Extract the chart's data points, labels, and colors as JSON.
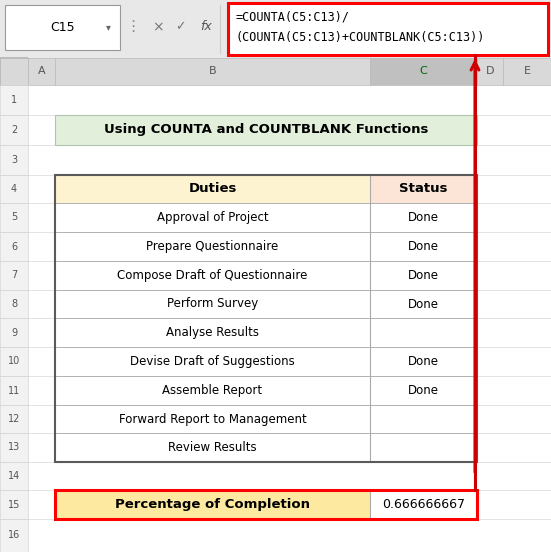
{
  "title": "Using COUNTA and COUNTBLANK Functions",
  "title_bg": "#e2efda",
  "title_border": "#9bc2a0",
  "duties_header": "Duties",
  "status_header": "Status",
  "header_duties_bg": "#fef3d0",
  "header_status_bg": "#fce4d6",
  "duties": [
    "Approval of Project",
    "Prepare Questionnaire",
    "Compose Draft of Questionnaire",
    "Perform Survey",
    "Analyse Results",
    "Devise Draft of Suggestions",
    "Assemble Report",
    "Forward Report to Management",
    "Review Results"
  ],
  "status": [
    "Done",
    "Done",
    "Done",
    "Done",
    "",
    "Done",
    "Done",
    "",
    ""
  ],
  "footer_label": "Percentage of Completion",
  "footer_value": "0.666666667",
  "footer_bg": "#fde9a0",
  "footer_value_bg": "#ffffff",
  "formula_line1": "=COUNTA(C5:C13)/",
  "formula_line2": "(COUNTA(C5:C13)+COUNTBLANK(C5:C13))",
  "formula_border": "#ff0000",
  "cell_ref": "C15",
  "duties_text_color": "#000000",
  "status_text_color": "#000000",
  "bg_color": "#ffffff",
  "toolbar_bg": "#e8e8e8",
  "formula_bar_bg": "#f2f2f2",
  "col_header_bg": "#d9d9d9",
  "row_header_bg": "#f2f2f2",
  "table_border_color": "#5a5a5a",
  "inner_line_color": "#aaaaaa",
  "red_line_color": "#cc0000",
  "green_line_color": "#006400"
}
